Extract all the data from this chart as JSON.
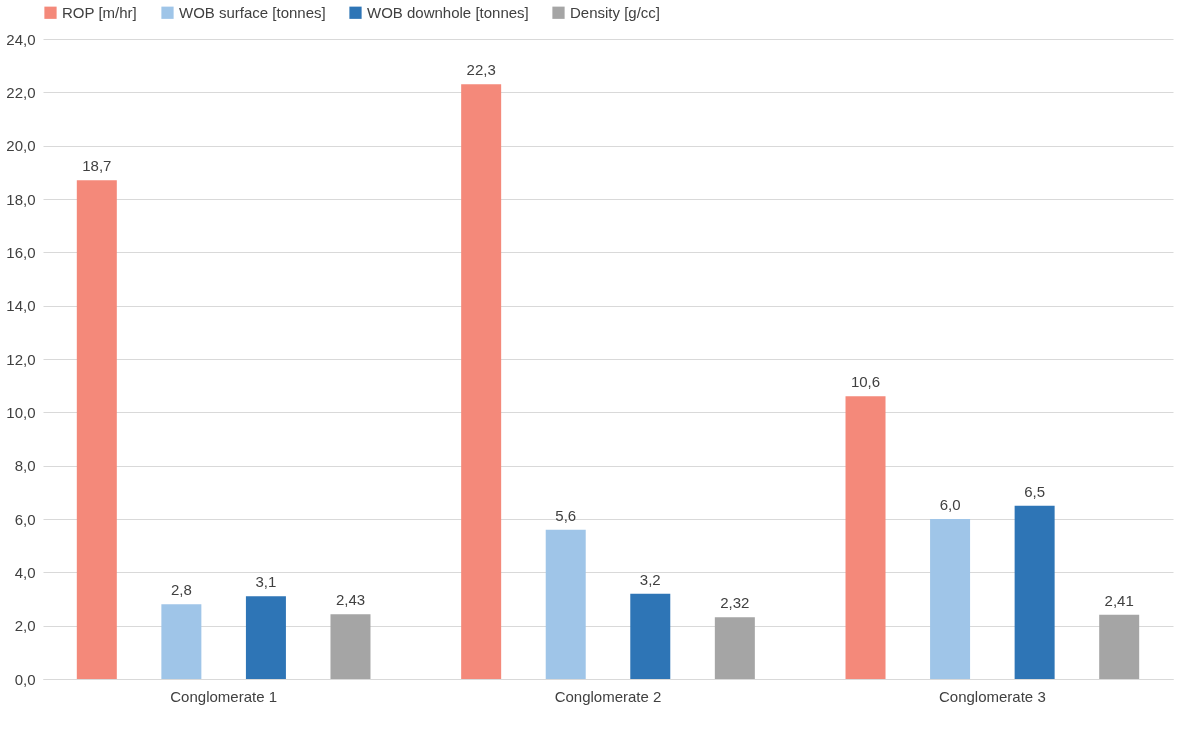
{
  "chart_data": {
    "type": "bar",
    "categories": [
      "Conglomerate 1",
      "Conglomerate 2",
      "Conglomerate 3"
    ],
    "series": [
      {
        "name": "ROP [m/hr]",
        "color": "#f4897a",
        "values": [
          18.7,
          22.3,
          10.6
        ],
        "value_labels": [
          "18,7",
          "22,3",
          "10,6"
        ]
      },
      {
        "name": "WOB surface [tonnes]",
        "color": "#9fc5e8",
        "values": [
          2.8,
          5.6,
          6.0
        ],
        "value_labels": [
          "2,8",
          "5,6",
          "6,0"
        ]
      },
      {
        "name": "WOB downhole [tonnes]",
        "color": "#2e75b6",
        "values": [
          3.1,
          3.2,
          6.5
        ],
        "value_labels": [
          "3,1",
          "3,2",
          "6,5"
        ]
      },
      {
        "name": "Density [g/cc]",
        "color": "#a5a5a5",
        "values": [
          2.43,
          2.32,
          2.41
        ],
        "value_labels": [
          "2,43",
          "2,32",
          "2,41"
        ]
      }
    ],
    "ylim": [
      0,
      24
    ],
    "yticks": [
      {
        "value": 0,
        "label": "0,0"
      },
      {
        "value": 2,
        "label": "2,0"
      },
      {
        "value": 4,
        "label": "4,0"
      },
      {
        "value": 6,
        "label": "6,0"
      },
      {
        "value": 8,
        "label": "8,0"
      },
      {
        "value": 10,
        "label": "10,0"
      },
      {
        "value": 12,
        "label": "12,0"
      },
      {
        "value": 14,
        "label": "14,0"
      },
      {
        "value": 16,
        "label": "16,0"
      },
      {
        "value": 18,
        "label": "18,0"
      },
      {
        "value": 20,
        "label": "20,0"
      },
      {
        "value": 22,
        "label": "22,0"
      },
      {
        "value": 24,
        "label": "24,0"
      }
    ],
    "grid": "y",
    "legend": "top"
  }
}
